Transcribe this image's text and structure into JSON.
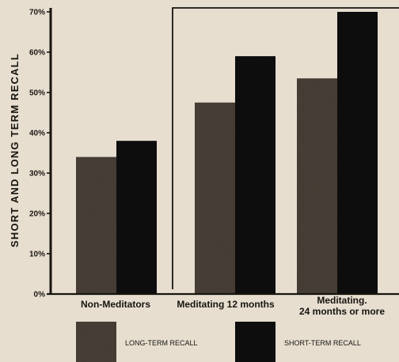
{
  "colors": {
    "paper": "#e7ded0",
    "ink": "#17140f",
    "long_term": "#4a4239",
    "short_term": "#100e0b"
  },
  "chart_data": {
    "type": "bar",
    "ylabel": "SHORT AND LONG TERM RECALL",
    "xlabel": "",
    "ylim": [
      0,
      70
    ],
    "yticks": [
      0,
      10,
      20,
      30,
      40,
      50,
      60,
      70
    ],
    "ytick_labels": [
      "0%",
      "10%",
      "20%",
      "30%",
      "40%",
      "50%",
      "60%",
      "70%"
    ],
    "categories": [
      {
        "lines": [
          "Non-Meditators"
        ]
      },
      {
        "lines": [
          "Meditating 12 months"
        ]
      },
      {
        "lines": [
          "Meditating.",
          "24 months or more"
        ]
      }
    ],
    "series": [
      {
        "name": "LONG-TERM RECALL",
        "color": "#4a4239",
        "values": [
          34,
          47.5,
          53.5
        ]
      },
      {
        "name": "SHORT-TERM RECALL",
        "color": "#100e0b",
        "values": [
          38,
          59,
          70
        ]
      }
    ],
    "legend": "bottom",
    "grid": false
  }
}
